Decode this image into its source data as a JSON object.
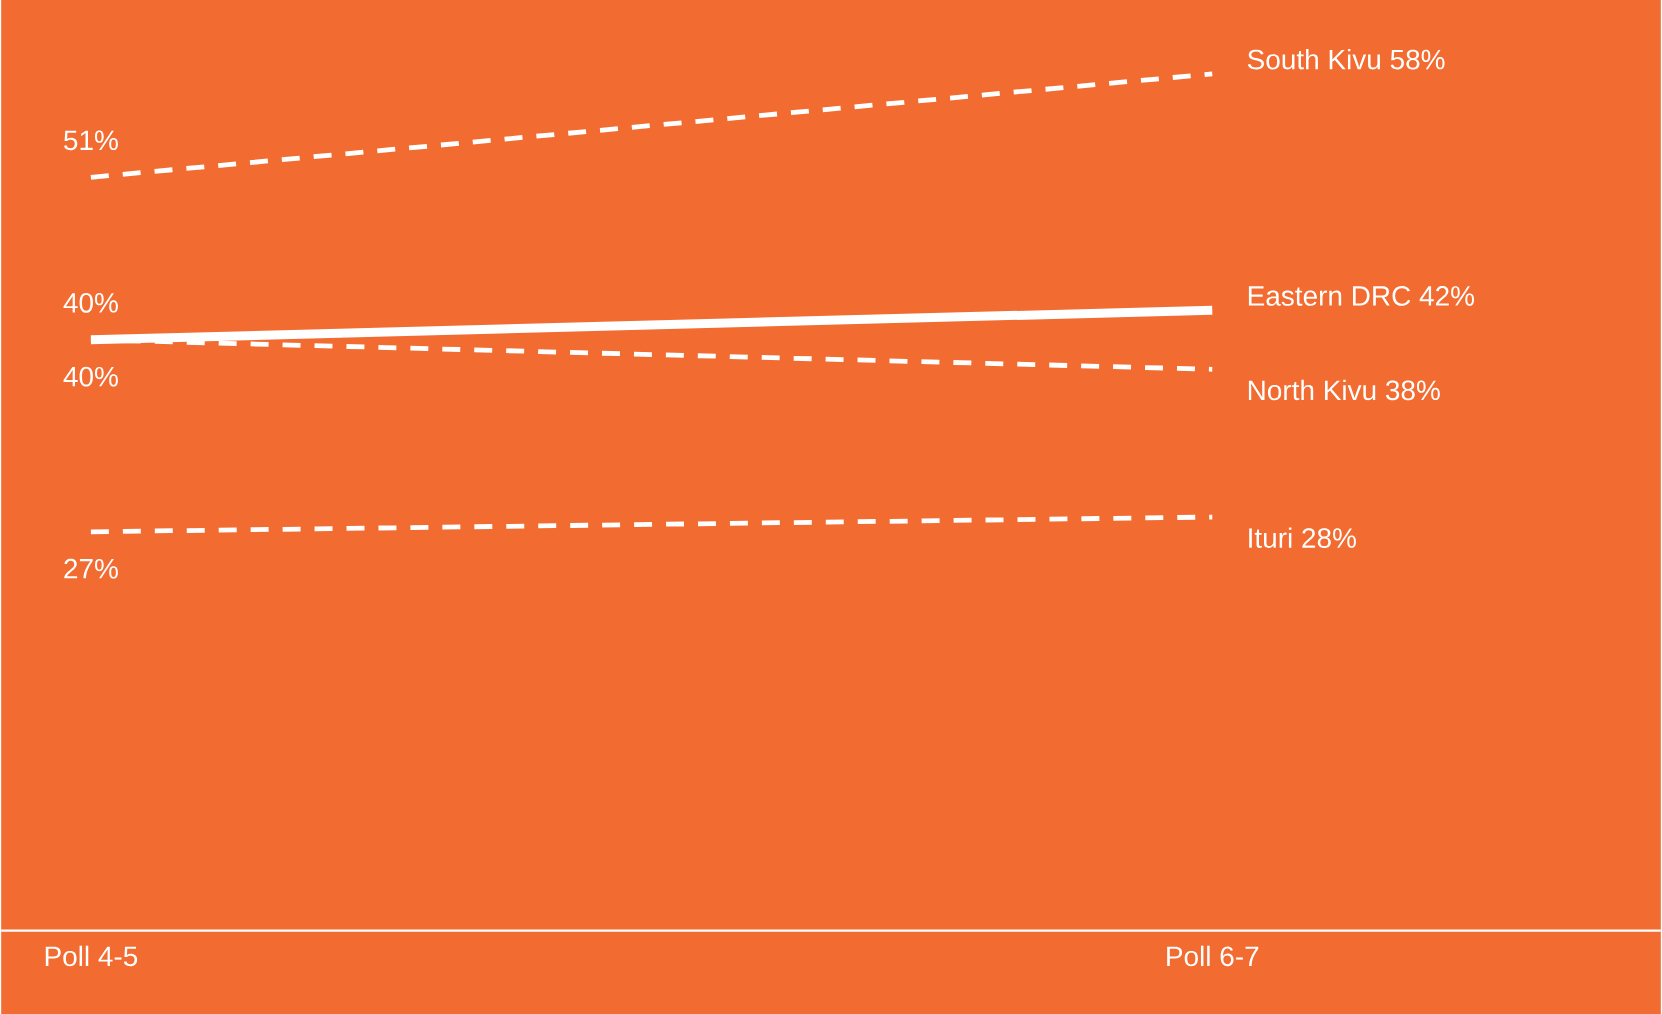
{
  "chart_data": {
    "type": "line",
    "categories": [
      "Poll 4-5",
      "Poll 6-7"
    ],
    "series": [
      {
        "name": "South Kivu 58%",
        "color": "#ffffff",
        "line_style": "dashed",
        "values": [
          51,
          58
        ],
        "value_labels": [
          "51%",
          null
        ]
      },
      {
        "name": "Eastern DRC 42%",
        "color": "#ffffff",
        "line_style": "solid",
        "values": [
          40,
          42
        ],
        "value_labels": [
          "40%",
          null
        ]
      },
      {
        "name": "North Kivu 38%",
        "color": "#ffffff",
        "line_style": "dashed",
        "values": [
          40,
          38
        ],
        "value_labels": [
          "40%",
          null
        ]
      },
      {
        "name": "Ituri 28%",
        "color": "#ffffff",
        "line_style": "dashed",
        "values": [
          27,
          28
        ],
        "value_labels": [
          "27%",
          null
        ]
      }
    ],
    "ylim": [
      0,
      63
    ],
    "grid": false,
    "marker": "none",
    "tick_labels": "x"
  }
}
